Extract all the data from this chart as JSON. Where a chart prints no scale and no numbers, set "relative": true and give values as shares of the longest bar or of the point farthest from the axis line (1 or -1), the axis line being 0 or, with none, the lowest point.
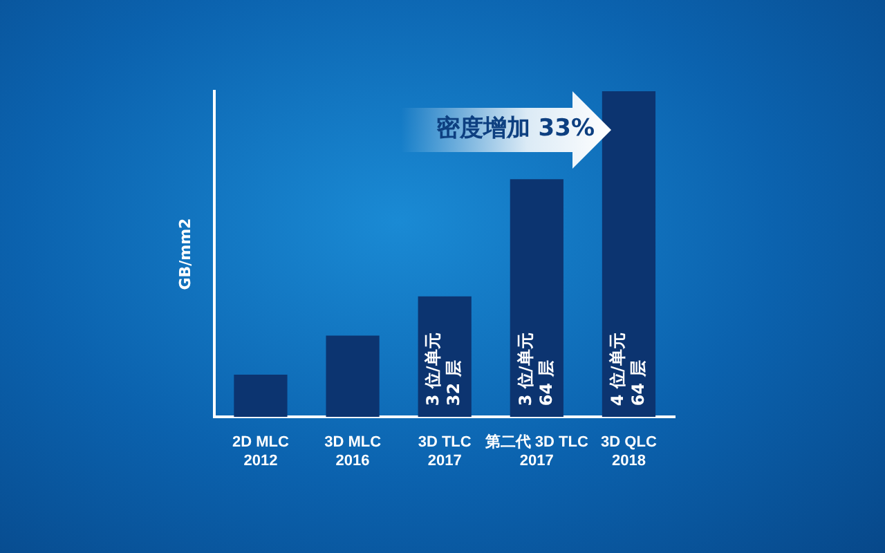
{
  "chart_data": {
    "type": "bar",
    "relative": true,
    "ylabel": "GB/mm2",
    "categories": [
      "2D MLC\n2012",
      "3D MLC\n2016",
      "3D TLC\n2017",
      "第二代 3D TLC\n2017",
      "3D QLC\n2018"
    ],
    "values": [
      0.13,
      0.25,
      0.37,
      0.73,
      1
    ],
    "color": "#0c3470",
    "grid": false,
    "legend": false,
    "annotations": [
      "密度增加 33%",
      "3 位/单元\n32 层",
      "3 位/单元\n64 层",
      "4 位/单元\n64 层"
    ]
  }
}
